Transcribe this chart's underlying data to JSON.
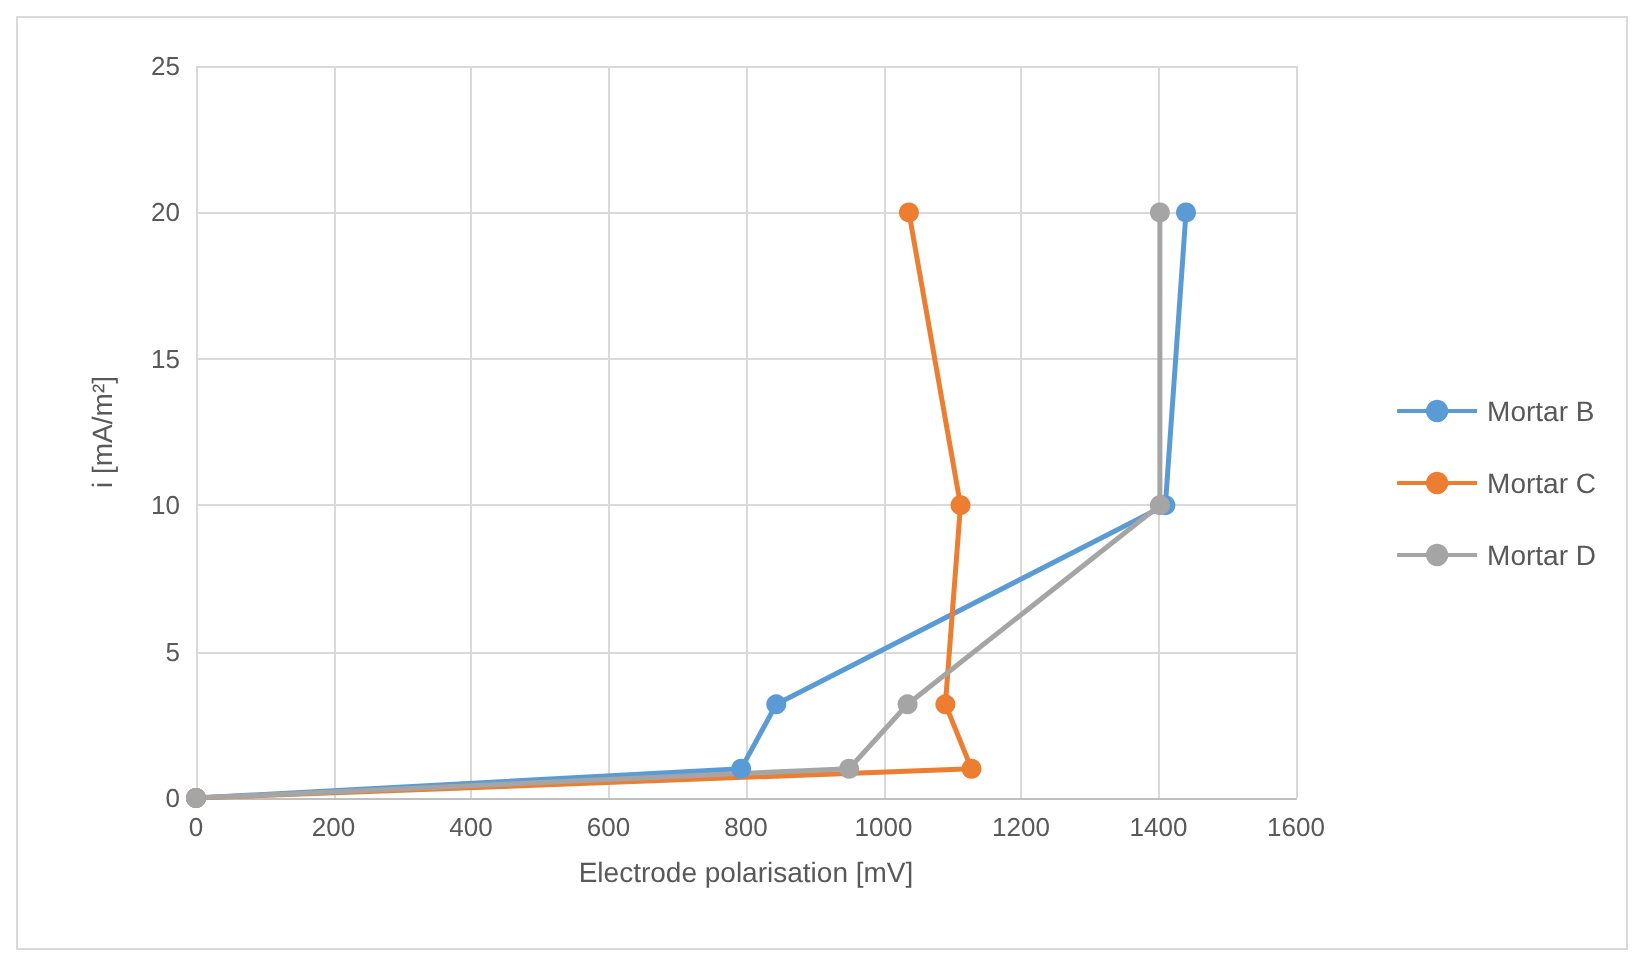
{
  "chart_data": {
    "type": "line",
    "xlabel": "Electrode polarisation [mV]",
    "ylabel": "i [mA/m²]",
    "xlim": [
      0,
      1600
    ],
    "xticks": [
      0,
      200,
      400,
      600,
      800,
      1000,
      1200,
      1400,
      1600
    ],
    "ylim": [
      0,
      25
    ],
    "yticks": [
      0,
      5,
      10,
      15,
      20,
      25
    ],
    "grid": true,
    "legend": "right",
    "marker": "circle",
    "line_style": "solid",
    "series": [
      {
        "name": "Mortar B",
        "color": "#5b9bd5",
        "x": [
          0,
          793,
          844,
          1410,
          1440
        ],
        "values": [
          0,
          1,
          3.2,
          10,
          20
        ]
      },
      {
        "name": "Mortar C",
        "color": "#ed7d31",
        "x": [
          0,
          1128,
          1090,
          1112,
          1037
        ],
        "values": [
          0,
          1,
          3.2,
          10,
          20
        ]
      },
      {
        "name": "Mortar D",
        "color": "#a5a5a5",
        "x": [
          0,
          950,
          1035,
          1402,
          1402
        ],
        "values": [
          0,
          1,
          3.2,
          10,
          20
        ]
      }
    ]
  }
}
